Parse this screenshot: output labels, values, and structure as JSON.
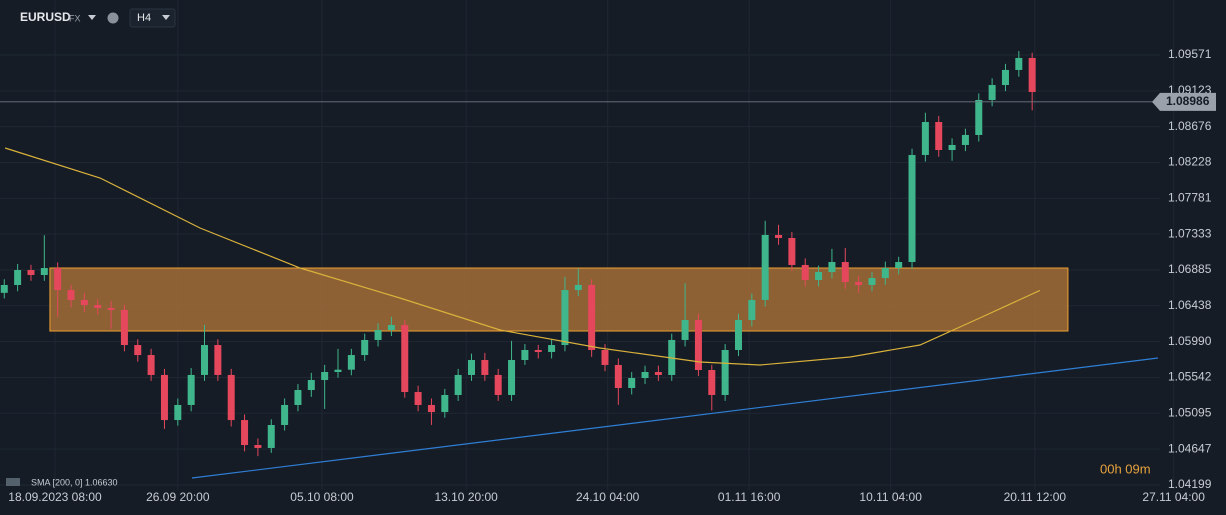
{
  "chart_data": {
    "type": "candlestick",
    "symbol": "EURUSD",
    "market": "FX",
    "timeframe": "H4",
    "up_color": "#3fb68b",
    "down_color": "#e5475c",
    "grid": true,
    "x": [
      -19,
      -14,
      -9,
      -4,
      1,
      6,
      11,
      16,
      21,
      26,
      31,
      36,
      41,
      46,
      51,
      56,
      61,
      66,
      71,
      76,
      81,
      86,
      91,
      96,
      101,
      106,
      111,
      116,
      121,
      126,
      131,
      136,
      141,
      146,
      151,
      156,
      161,
      166,
      171,
      176,
      181,
      186,
      191,
      196,
      201,
      206,
      211,
      216,
      221,
      226,
      231,
      236,
      241,
      246,
      251,
      256,
      261,
      266,
      271,
      276,
      281,
      286,
      291,
      296,
      301,
      306,
      311,
      316,
      321,
      326,
      331,
      336,
      341,
      346,
      351,
      356,
      361,
      366
    ],
    "open": [
      1.066,
      1.06698,
      1.06885,
      1.06823,
      1.0691,
      1.06635,
      1.06511,
      1.06448,
      1.06411,
      1.06386,
      1.05948,
      1.05823,
      1.05574,
      1.05011,
      1.05199,
      1.05574,
      1.05948,
      1.05574,
      1.05011,
      1.04699,
      1.04662,
      1.04949,
      1.05199,
      1.05386,
      1.05511,
      1.05611,
      1.0564,
      1.05823,
      1.06011,
      1.06136,
      1.06198,
      1.05361,
      1.05199,
      1.05111,
      1.05324,
      1.05574,
      1.05761,
      1.05574,
      1.05324,
      1.05761,
      1.05886,
      1.05861,
      1.05948,
      1.06635,
      1.06698,
      1.05886,
      1.05699,
      1.05411,
      1.05536,
      1.05611,
      1.05574,
      1.06011,
      1.06261,
      1.05636,
      1.05324,
      1.05886,
      1.06261,
      1.06511,
      1.07323,
      1.07285,
      1.06948,
      1.0676,
      1.0686,
      1.06985,
      1.06735,
      1.06698,
      1.06785,
      1.0691,
      1.06985,
      1.08322,
      1.08734,
      1.08384,
      1.08447,
      1.08572,
      1.09009,
      1.09196,
      1.09384,
      1.09534
    ],
    "high": [
      1.0677,
      1.0696,
      1.0695,
      1.0732,
      1.0698,
      1.067,
      1.066,
      1.0652,
      1.065,
      1.0645,
      1.0602,
      1.059,
      1.0565,
      1.0528,
      1.0566,
      1.062,
      1.0602,
      1.0565,
      1.0508,
      1.0478,
      1.0502,
      1.0528,
      1.0546,
      1.056,
      1.057,
      1.059,
      1.059,
      1.0609,
      1.0622,
      1.063,
      1.0626,
      1.0544,
      1.0528,
      1.054,
      1.0565,
      1.0584,
      1.0585,
      1.0565,
      1.06,
      1.0596,
      1.0595,
      1.0602,
      1.068,
      1.069,
      1.0677,
      1.0596,
      1.0578,
      1.0561,
      1.0569,
      1.0569,
      1.0609,
      1.0672,
      1.0634,
      1.057,
      1.0596,
      1.0634,
      1.0659,
      1.075,
      1.0745,
      1.0736,
      1.0703,
      1.0694,
      1.0715,
      1.0716,
      1.0681,
      1.0686,
      1.0699,
      1.0705,
      1.084,
      1.0885,
      1.0881,
      1.0853,
      1.0865,
      1.0909,
      1.0928,
      1.0946,
      1.0962,
      1.096
    ],
    "low": [
      1.0653,
      1.0662,
      1.0675,
      1.0675,
      1.063,
      1.0642,
      1.0636,
      1.0633,
      1.0615,
      1.0587,
      1.0574,
      1.055,
      1.049,
      1.0494,
      1.0512,
      1.055,
      1.055,
      1.0493,
      1.0462,
      1.0456,
      1.046,
      1.0488,
      1.0512,
      1.053,
      1.0515,
      1.0554,
      1.0557,
      1.0575,
      1.0593,
      1.0606,
      1.0529,
      1.0512,
      1.0495,
      1.0504,
      1.0525,
      1.055,
      1.055,
      1.0525,
      1.0525,
      1.057,
      1.0578,
      1.0578,
      1.0587,
      1.0656,
      1.058,
      1.0562,
      1.052,
      1.0533,
      1.0546,
      1.055,
      1.055,
      1.0593,
      1.0556,
      1.0513,
      1.0525,
      1.0581,
      1.0618,
      1.0643,
      1.072,
      1.0687,
      1.0668,
      1.0668,
      1.0678,
      1.0665,
      1.066,
      1.0662,
      1.067,
      1.0683,
      1.069,
      1.0824,
      1.083,
      1.0825,
      1.0837,
      1.0849,
      1.0893,
      1.0912,
      1.093,
      1.0888
    ],
    "close": [
      1.06698,
      1.06885,
      1.06823,
      1.0691,
      1.06635,
      1.06511,
      1.06448,
      1.06411,
      1.06386,
      1.05948,
      1.05823,
      1.05574,
      1.05011,
      1.05199,
      1.05574,
      1.05948,
      1.05574,
      1.05011,
      1.04699,
      1.04662,
      1.04949,
      1.05199,
      1.05386,
      1.05511,
      1.05611,
      1.0564,
      1.05823,
      1.06011,
      1.06136,
      1.06198,
      1.05361,
      1.05199,
      1.05111,
      1.05324,
      1.05574,
      1.05761,
      1.05574,
      1.05324,
      1.05761,
      1.05886,
      1.05861,
      1.05948,
      1.06635,
      1.06698,
      1.05886,
      1.05699,
      1.05411,
      1.05536,
      1.05611,
      1.05574,
      1.06011,
      1.06261,
      1.05636,
      1.05324,
      1.05886,
      1.06261,
      1.06511,
      1.07323,
      1.07285,
      1.06948,
      1.0676,
      1.0686,
      1.06985,
      1.06735,
      1.06698,
      1.06785,
      1.0691,
      1.06985,
      1.08322,
      1.08734,
      1.08384,
      1.08447,
      1.08572,
      1.09009,
      1.09196,
      1.09384,
      1.09534,
      1.09109
    ],
    "sma": {
      "label": "SMA [200, 0] 1.06630",
      "color": "#d9b13b",
      "x": [
        -18.7,
        16.9,
        54.3,
        91.8,
        129.2,
        166.7,
        204.1,
        241.6,
        264,
        297.8,
        324,
        346.4,
        368.9
      ],
      "values": [
        1.08409,
        1.08035,
        1.0741,
        1.0691,
        1.06536,
        1.06136,
        1.05911,
        1.05736,
        1.05699,
        1.05798,
        1.05948,
        1.06286,
        1.0663
      ]
    },
    "trendline": {
      "color": "#2f7fd6",
      "x": [
        51.3,
        413.1
      ],
      "values": [
        1.04287,
        1.05786
      ]
    },
    "zone": {
      "color": "#b5783a",
      "x": [
        -1.9,
        379.4
      ],
      "y": [
        1.06123,
        1.0691
      ]
    },
    "current_price": 1.08986,
    "timer": "00h 09m",
    "xlim": [
      -20.6,
      438.6
    ],
    "ylim": [
      1.04137,
      1.10258
    ],
    "yticks": [
      1.09571,
      1.09123,
      1.08676,
      1.08228,
      1.07781,
      1.07333,
      1.06885,
      1.06438,
      {
        "value": 1.0599,
        "label": "1.05990"
      },
      1.05542,
      1.05095,
      1.04647,
      1.04199
    ],
    "xticks": [
      {
        "value": 0,
        "label": "18.09.2023 08:00"
      },
      {
        "value": 46,
        "label": "26.09 20:00"
      },
      {
        "value": 100,
        "label": "05.10 08:00"
      },
      {
        "value": 154,
        "label": "13.10 20:00"
      },
      {
        "value": 207,
        "label": "24.10 04:00"
      },
      {
        "value": 260,
        "label": "01.11 16:00"
      },
      {
        "value": 313,
        "label": "10.11 04:00"
      },
      {
        "value": 367,
        "label": "20.11 12:00"
      },
      {
        "value": 419,
        "label": "27.11 04:00"
      }
    ]
  }
}
